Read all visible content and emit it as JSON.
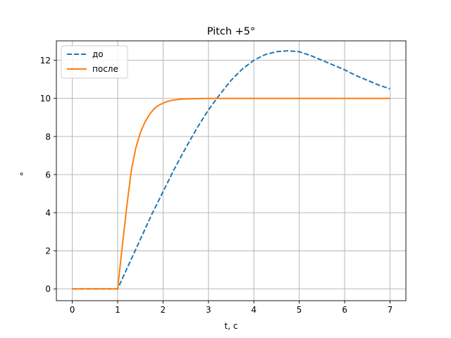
{
  "chart_data": {
    "type": "line",
    "title": "Pitch +5°",
    "xlabel": "t, c",
    "ylabel": "°",
    "xlim": [
      -0.35,
      7.35
    ],
    "ylim": [
      -0.62,
      13.02
    ],
    "xticks": [
      0,
      1,
      2,
      3,
      4,
      5,
      6,
      7
    ],
    "yticks": [
      0,
      2,
      4,
      6,
      8,
      10,
      12
    ],
    "grid": true,
    "legend_position": "top-left",
    "series": [
      {
        "name": "до",
        "color": "#1f77b4",
        "dash": "dashed",
        "x": [
          0,
          0.5,
          1.0,
          1.25,
          1.5,
          1.75,
          2.0,
          2.25,
          2.5,
          2.75,
          3.0,
          3.25,
          3.5,
          3.75,
          4.0,
          4.25,
          4.5,
          4.75,
          5.0,
          5.25,
          5.5,
          5.75,
          6.0,
          6.25,
          6.5,
          6.75,
          7.0
        ],
        "y": [
          0,
          0,
          0,
          1.3,
          2.6,
          3.9,
          5.1,
          6.3,
          7.4,
          8.45,
          9.4,
          10.2,
          10.95,
          11.55,
          12.0,
          12.3,
          12.45,
          12.5,
          12.45,
          12.25,
          12.0,
          11.75,
          11.5,
          11.2,
          10.95,
          10.7,
          10.5
        ]
      },
      {
        "name": "после",
        "color": "#ff7f0e",
        "dash": "solid",
        "x": [
          0,
          0.5,
          1.0,
          1.1,
          1.2,
          1.3,
          1.4,
          1.5,
          1.6,
          1.7,
          1.8,
          1.9,
          2.0,
          2.1,
          2.2,
          2.4,
          2.6,
          2.8,
          3.0,
          3.5,
          4.0,
          5.0,
          6.0,
          7.0
        ],
        "y": [
          0,
          0,
          0,
          2.2,
          4.3,
          6.2,
          7.4,
          8.2,
          8.75,
          9.15,
          9.45,
          9.63,
          9.75,
          9.84,
          9.9,
          9.96,
          9.98,
          9.99,
          10.0,
          10.0,
          10.0,
          10.0,
          10.0,
          10.0
        ]
      }
    ]
  }
}
